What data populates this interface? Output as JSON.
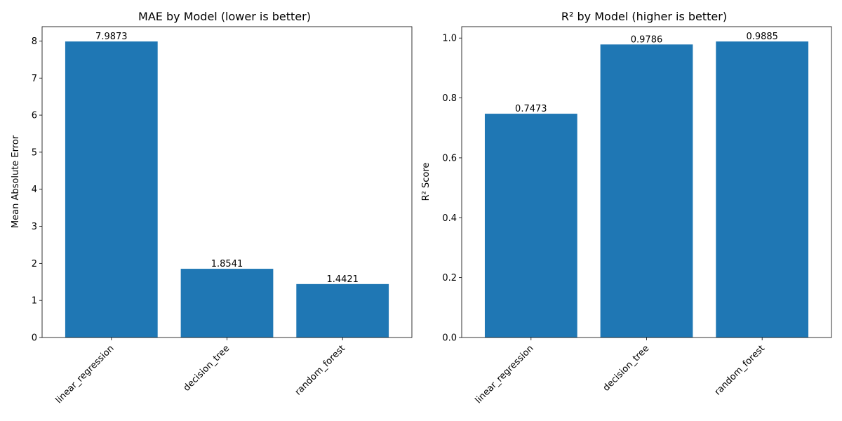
{
  "figure": {
    "bar_color": "#1f77b4"
  },
  "chart_data": [
    {
      "type": "bar",
      "title": "MAE by Model (lower is better)",
      "xlabel": "",
      "ylabel": "Mean Absolute Error",
      "categories": [
        "linear_regression",
        "decision_tree",
        "random_forest"
      ],
      "values": [
        7.9873,
        1.8541,
        1.4421
      ],
      "value_labels": [
        "7.9873",
        "1.8541",
        "1.4421"
      ],
      "ylim": [
        0,
        8.387
      ],
      "yticks": [
        0,
        1,
        2,
        3,
        4,
        5,
        6,
        7,
        8
      ],
      "ytick_labels": [
        "0",
        "1",
        "2",
        "3",
        "4",
        "5",
        "6",
        "7",
        "8"
      ],
      "grid": false,
      "legend": "none"
    },
    {
      "type": "bar",
      "title": "R² by Model (higher is better)",
      "xlabel": "",
      "ylabel": "R² Score",
      "categories": [
        "linear_regression",
        "decision_tree",
        "random_forest"
      ],
      "values": [
        0.7473,
        0.9786,
        0.9885
      ],
      "value_labels": [
        "0.7473",
        "0.9786",
        "0.9885"
      ],
      "ylim": [
        0,
        1.038
      ],
      "yticks": [
        0,
        0.2,
        0.4,
        0.6,
        0.8,
        1.0
      ],
      "ytick_labels": [
        "0.0",
        "0.2",
        "0.4",
        "0.6",
        "0.8",
        "1.0"
      ],
      "grid": false,
      "legend": "none"
    }
  ]
}
